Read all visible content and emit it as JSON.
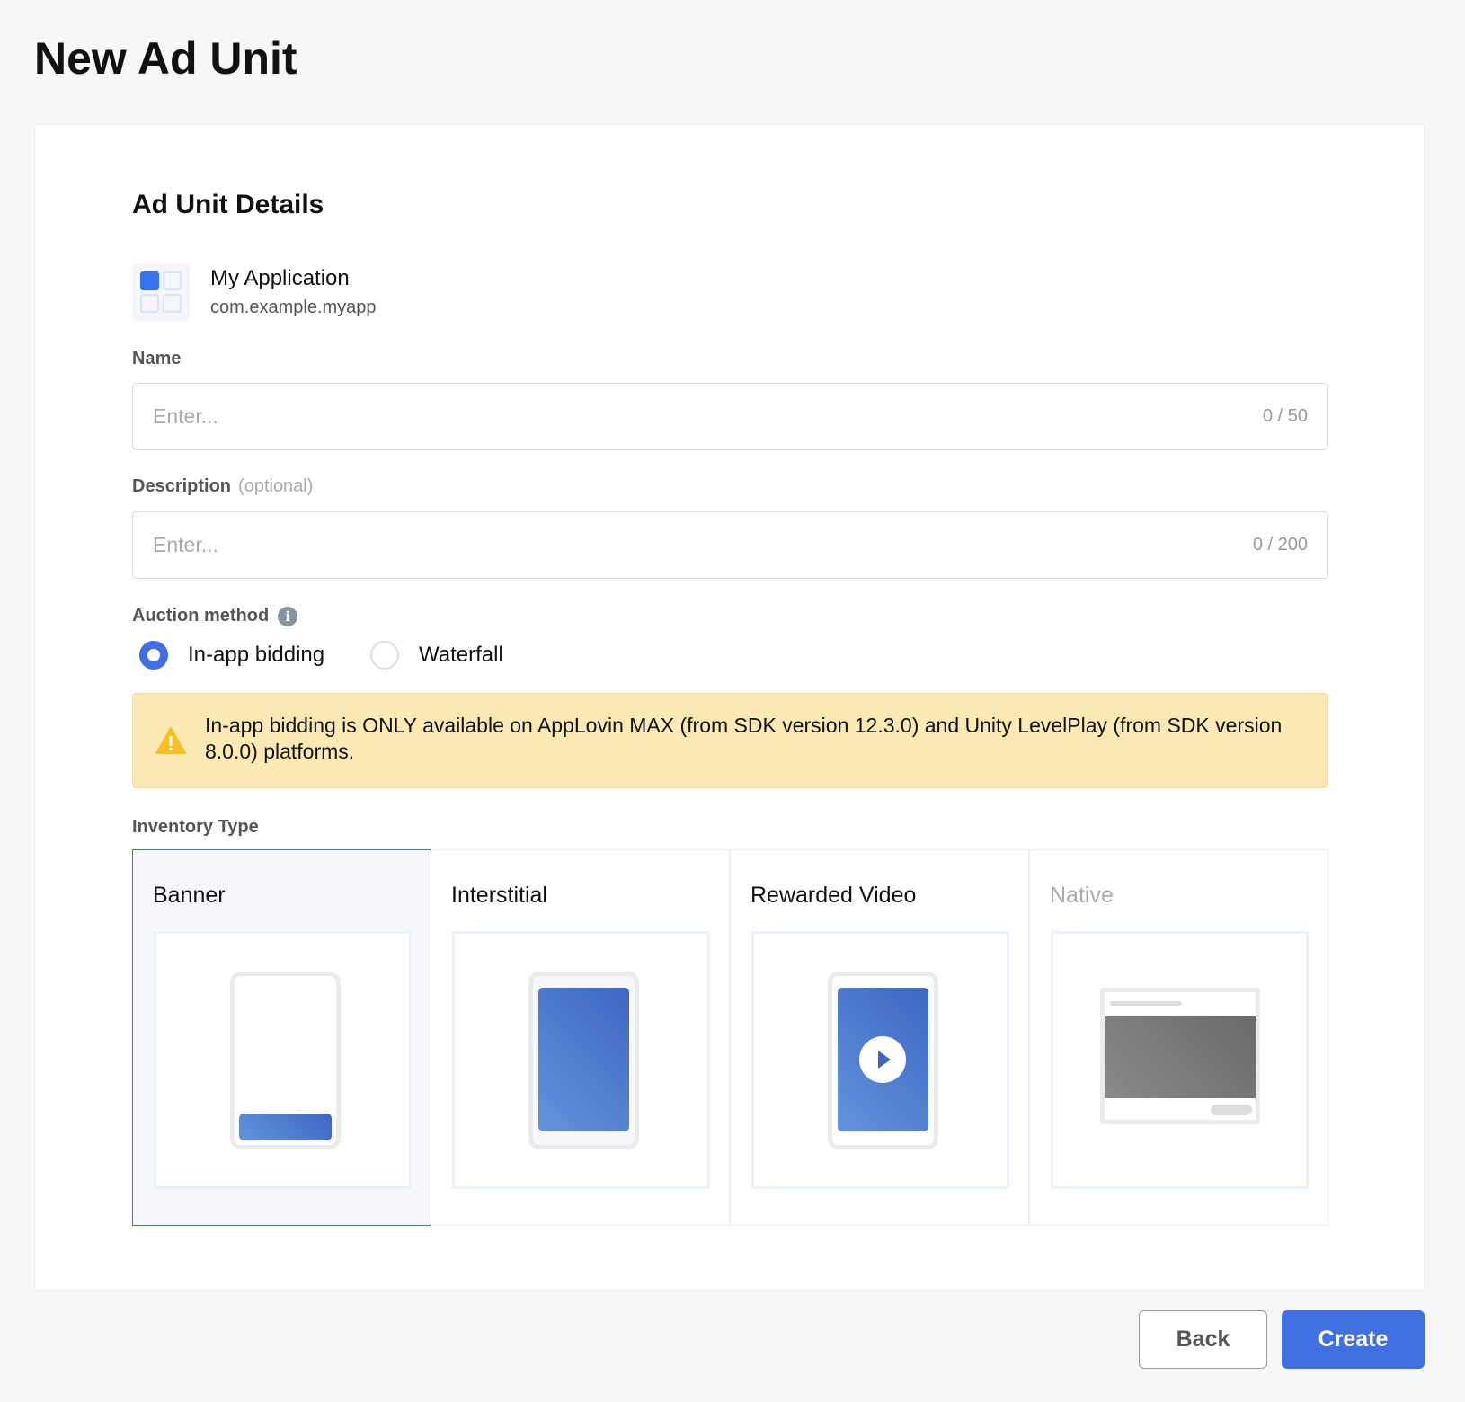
{
  "page_title": "New Ad Unit",
  "section_title": "Ad Unit Details",
  "app": {
    "name": "My Application",
    "bundle_id": "com.example.myapp",
    "icon": "app-grid-icon"
  },
  "name_field": {
    "label": "Name",
    "placeholder": "Enter...",
    "value": "",
    "counter": "0 / 50"
  },
  "description_field": {
    "label": "Description",
    "optional": "(optional)",
    "placeholder": "Enter...",
    "value": "",
    "counter": "0 / 200"
  },
  "auction": {
    "label": "Auction method",
    "info_icon": "i",
    "options": [
      {
        "label": "In-app bidding",
        "selected": true
      },
      {
        "label": "Waterfall",
        "selected": false
      }
    ]
  },
  "warning": {
    "icon": "warning-icon",
    "text": "In-app bidding is ONLY available on AppLovin MAX (from SDK version 12.3.0) and Unity LevelPlay (from SDK version 8.0.0) platforms."
  },
  "inventory": {
    "label": "Inventory Type",
    "types": [
      {
        "label": "Banner",
        "selected": true
      },
      {
        "label": "Interstitial"
      },
      {
        "label": "Rewarded Video"
      },
      {
        "label": "Native",
        "disabled": true
      }
    ]
  },
  "buttons": {
    "back": "Back",
    "create": "Create"
  },
  "colors": {
    "accent": "#3f6fe0",
    "warning_bg": "#fce9b3"
  }
}
